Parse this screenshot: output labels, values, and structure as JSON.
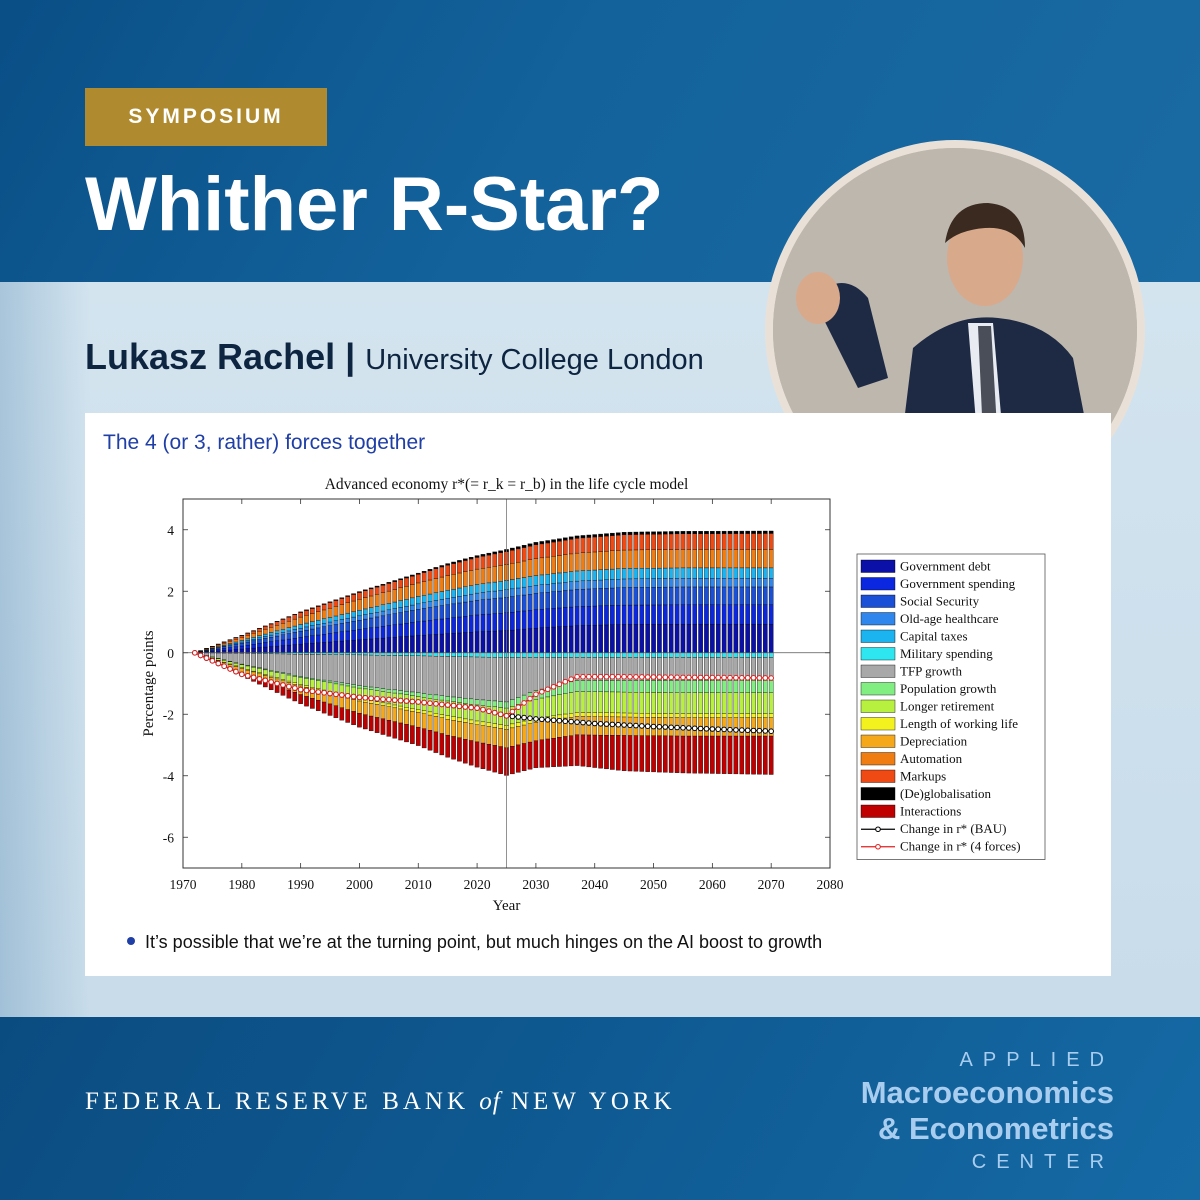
{
  "header": {
    "badge": "SYMPOSIUM",
    "title": "Whither R-Star?"
  },
  "speaker": {
    "name": "Lukasz Rachel",
    "separator": "|",
    "affiliation": "University College London"
  },
  "slide": {
    "heading": "The 4 (or 3, rather) forces together",
    "bullet": "It’s possible that we’re at the turning point, but much hinges on the AI boost to growth"
  },
  "footer": {
    "bank": [
      "FEDERAL RESERVE BANK ",
      "of",
      " NEW YORK"
    ],
    "center": [
      "APPLIED",
      "Macroeconomics",
      "& Econometrics",
      "CENTER"
    ]
  },
  "chart_data": {
    "type": "bar",
    "stacked": true,
    "title": "Advanced economy r*(= r_k = r_b) in the life cycle model",
    "xlabel": "Year",
    "ylabel": "Percentage points",
    "xlim": [
      1970,
      2080
    ],
    "ylim": [
      -7,
      5
    ],
    "xticks": [
      1970,
      1980,
      1990,
      2000,
      2010,
      2020,
      2030,
      2040,
      2050,
      2060,
      2070,
      2080
    ],
    "yticks": [
      4,
      2,
      0,
      -2,
      -4,
      -6
    ],
    "vline_x": 2025,
    "grid": false,
    "legend_position": "right",
    "x": [
      1972,
      1980,
      1990,
      2000,
      2010,
      2015,
      2020,
      2025,
      2030,
      2037,
      2045,
      2055,
      2070
    ],
    "series": [
      {
        "name": "Government debt",
        "color": "#0a10a8",
        "values": [
          0,
          0.12,
          0.28,
          0.42,
          0.56,
          0.62,
          0.68,
          0.72,
          0.8,
          0.88,
          0.92,
          0.93,
          0.93
        ]
      },
      {
        "name": "Government spending",
        "color": "#0b28e0",
        "values": [
          0,
          0.1,
          0.22,
          0.34,
          0.45,
          0.5,
          0.55,
          0.58,
          0.6,
          0.62,
          0.63,
          0.63,
          0.63
        ]
      },
      {
        "name": "Social Security",
        "color": "#1a4fd8",
        "values": [
          0,
          0.09,
          0.2,
          0.3,
          0.4,
          0.44,
          0.48,
          0.5,
          0.53,
          0.56,
          0.57,
          0.58,
          0.58
        ]
      },
      {
        "name": "Old-age healthcare",
        "color": "#2f87ee",
        "values": [
          0,
          0.04,
          0.1,
          0.14,
          0.18,
          0.21,
          0.23,
          0.25,
          0.26,
          0.27,
          0.28,
          0.28,
          0.28
        ]
      },
      {
        "name": "Capital taxes",
        "color": "#1bb3f0",
        "values": [
          0,
          0.05,
          0.12,
          0.18,
          0.24,
          0.26,
          0.28,
          0.3,
          0.32,
          0.33,
          0.34,
          0.34,
          0.34
        ]
      },
      {
        "name": "Military spending",
        "color": "#2ee6f0",
        "values": [
          0,
          -0.02,
          -0.05,
          -0.07,
          -0.1,
          -0.12,
          -0.14,
          -0.15,
          -0.15,
          -0.15,
          -0.15,
          -0.15,
          -0.15
        ]
      },
      {
        "name": "TFP growth",
        "color": "#a8a8a8",
        "values": [
          0,
          -0.35,
          -0.72,
          -1.0,
          -1.2,
          -1.3,
          -1.38,
          -1.45,
          -1.08,
          -0.75,
          -0.75,
          -0.75,
          -0.75
        ]
      },
      {
        "name": "Population growth",
        "color": "#80ee80",
        "values": [
          0,
          -0.02,
          -0.04,
          -0.08,
          -0.12,
          -0.15,
          -0.18,
          -0.2,
          -0.28,
          -0.36,
          -0.38,
          -0.4,
          -0.4
        ]
      },
      {
        "name": "Longer retirement",
        "color": "#b8f040",
        "values": [
          0,
          -0.1,
          -0.22,
          -0.34,
          -0.42,
          -0.48,
          -0.52,
          -0.56,
          -0.62,
          -0.68,
          -0.68,
          -0.68,
          -0.68
        ]
      },
      {
        "name": "Length of working life",
        "color": "#f4f21e",
        "values": [
          0,
          -0.02,
          -0.05,
          -0.08,
          -0.1,
          -0.11,
          -0.12,
          -0.13,
          -0.13,
          -0.13,
          -0.13,
          -0.13,
          -0.13
        ]
      },
      {
        "name": "Depreciation",
        "color": "#f4a81a",
        "values": [
          0,
          -0.12,
          -0.28,
          -0.4,
          -0.48,
          -0.52,
          -0.56,
          -0.6,
          -0.6,
          -0.6,
          -0.6,
          -0.6,
          -0.6
        ]
      },
      {
        "name": "Automation",
        "color": "#f07d12",
        "values": [
          0,
          0.1,
          0.24,
          0.36,
          0.44,
          0.48,
          0.5,
          0.52,
          0.55,
          0.58,
          0.6,
          0.6,
          0.6
        ]
      },
      {
        "name": "Markups",
        "color": "#f04a14",
        "values": [
          0,
          0.06,
          0.15,
          0.22,
          0.28,
          0.34,
          0.38,
          0.42,
          0.45,
          0.48,
          0.5,
          0.51,
          0.52
        ]
      },
      {
        "name": "(De)globalisation",
        "color": "#000000",
        "values": [
          0,
          0.01,
          0.02,
          0.03,
          0.04,
          0.05,
          0.06,
          0.07,
          0.08,
          0.08,
          0.08,
          0.08,
          0.08
        ]
      },
      {
        "name": "Interactions",
        "color": "#c00000",
        "values": [
          0,
          -0.12,
          -0.3,
          -0.45,
          -0.6,
          -0.72,
          -0.82,
          -0.9,
          -0.88,
          -1.0,
          -1.15,
          -1.2,
          -1.25
        ]
      }
    ],
    "lines": [
      {
        "name": "Change in r* (BAU)",
        "color": "#000000",
        "x": [
          1972,
          1980,
          1990,
          2000,
          2010,
          2020,
          2025,
          2030,
          2040,
          2050,
          2060,
          2070
        ],
        "values": [
          0,
          -0.7,
          -1.2,
          -1.45,
          -1.6,
          -1.8,
          -2.05,
          -2.15,
          -2.3,
          -2.4,
          -2.48,
          -2.55
        ]
      },
      {
        "name": "Change in r* (4 forces)",
        "color": "#e02020",
        "x": [
          1972,
          1980,
          1990,
          2000,
          2010,
          2020,
          2025,
          2030,
          2037,
          2045,
          2055,
          2070
        ],
        "values": [
          0,
          -0.7,
          -1.2,
          -1.45,
          -1.6,
          -1.8,
          -2.05,
          -1.35,
          -0.78,
          -0.78,
          -0.8,
          -0.82
        ]
      }
    ]
  }
}
